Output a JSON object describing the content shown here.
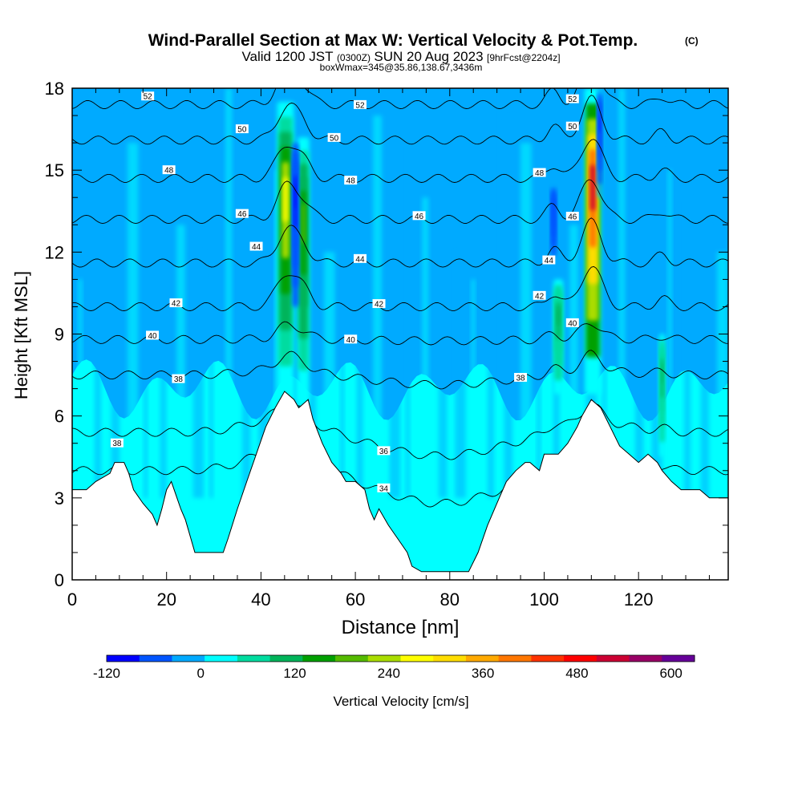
{
  "chart_data": {
    "type": "heatmap",
    "title": "Wind-Parallel Section at Max W: Vertical Velocity & Pot.Temp.",
    "title_mark": "(C)",
    "subtitle_main_a": "Valid 1200 JST",
    "subtitle_small_a": "(0300Z)",
    "subtitle_main_b": "SUN 20 Aug 2023",
    "subtitle_small_b": "[9hrFcst@2204z]",
    "subtitle2": "boxWmax=345@35.86,138.67,3436m",
    "xlabel": "Distance [nm]",
    "ylabel": "Height [Kft MSL]",
    "xlim": [
      0,
      139
    ],
    "ylim": [
      0,
      18
    ],
    "xticks": [
      0,
      20,
      40,
      60,
      80,
      100,
      120
    ],
    "yticks": [
      0,
      3,
      6,
      9,
      12,
      15,
      18
    ],
    "colorbar": {
      "label": "Vertical Velocity [cm/s]",
      "range": [
        -120,
        630
      ],
      "tick_values": [
        -120,
        0,
        120,
        240,
        360,
        480,
        600
      ],
      "tick_labels": [
        "-120",
        "0",
        "120",
        "240",
        "360",
        "480",
        "600"
      ],
      "colors": [
        "#0000ff",
        "#0055ff",
        "#00aaff",
        "#00ffff",
        "#00dca0",
        "#00b45a",
        "#00a000",
        "#55bb00",
        "#aadd00",
        "#ffff00",
        "#ffdd00",
        "#ffaa00",
        "#ff7700",
        "#ff3300",
        "#ff0000",
        "#cc0033",
        "#990066",
        "#660099"
      ]
    },
    "terrain_kft": [
      [
        0,
        3.3
      ],
      [
        3,
        3.3
      ],
      [
        5,
        3.6
      ],
      [
        8,
        3.9
      ],
      [
        9,
        4.3
      ],
      [
        11,
        4.3
      ],
      [
        12,
        3.9
      ],
      [
        13,
        3.3
      ],
      [
        15,
        2.8
      ],
      [
        17,
        2.4
      ],
      [
        18,
        2.0
      ],
      [
        19,
        2.6
      ],
      [
        20,
        3.3
      ],
      [
        21,
        3.6
      ],
      [
        22,
        3.1
      ],
      [
        23,
        2.6
      ],
      [
        24,
        2.2
      ],
      [
        26,
        1.0
      ],
      [
        28,
        1.0
      ],
      [
        32,
        1.0
      ],
      [
        33,
        1.5
      ],
      [
        35,
        2.6
      ],
      [
        37,
        3.6
      ],
      [
        39,
        4.6
      ],
      [
        41,
        5.6
      ],
      [
        43,
        6.3
      ],
      [
        45,
        6.9
      ],
      [
        47,
        6.6
      ],
      [
        48,
        6.3
      ],
      [
        50,
        6.6
      ],
      [
        51,
        5.9
      ],
      [
        53,
        5.0
      ],
      [
        55,
        4.3
      ],
      [
        57,
        3.9
      ],
      [
        58,
        3.6
      ],
      [
        60,
        3.6
      ],
      [
        62,
        3.3
      ],
      [
        63,
        2.6
      ],
      [
        64,
        2.2
      ],
      [
        65,
        2.6
      ],
      [
        67,
        2.0
      ],
      [
        69,
        1.5
      ],
      [
        71,
        1.0
      ],
      [
        72,
        0.5
      ],
      [
        74,
        0.3
      ],
      [
        84,
        0.3
      ],
      [
        86,
        1.0
      ],
      [
        88,
        2.0
      ],
      [
        90,
        2.8
      ],
      [
        92,
        3.6
      ],
      [
        94,
        4.0
      ],
      [
        96,
        4.3
      ],
      [
        97,
        4.3
      ],
      [
        99,
        4.0
      ],
      [
        100,
        4.6
      ],
      [
        103,
        4.6
      ],
      [
        105,
        5.0
      ],
      [
        107,
        5.6
      ],
      [
        108,
        6.0
      ],
      [
        110,
        6.6
      ],
      [
        112,
        6.3
      ],
      [
        114,
        5.6
      ],
      [
        116,
        4.9
      ],
      [
        118,
        4.6
      ],
      [
        120,
        4.3
      ],
      [
        122,
        4.6
      ],
      [
        124,
        4.3
      ],
      [
        125,
        4.0
      ],
      [
        127,
        3.6
      ],
      [
        129,
        3.3
      ],
      [
        133,
        3.3
      ],
      [
        135,
        3.0
      ],
      [
        139,
        3.0
      ]
    ],
    "updraft_columns": [
      {
        "x_center": 45.2,
        "width_nm": 3.5,
        "z_base": 6.5,
        "z_top": 17.5,
        "w_max": 300
      },
      {
        "x_center": 49.0,
        "width_nm": 2.5,
        "z_base": 6.5,
        "z_top": 16.2,
        "w_max": 200
      },
      {
        "x_center": 103.0,
        "width_nm": 2.0,
        "z_base": 6.8,
        "z_top": 11.0,
        "w_max": 130
      },
      {
        "x_center": 110.3,
        "width_nm": 3.5,
        "z_base": 6.8,
        "z_top": 18.0,
        "w_max": 600
      },
      {
        "x_center": 125.0,
        "width_nm": 1.2,
        "z_base": 4.5,
        "z_top": 9.0,
        "w_max": 120
      }
    ],
    "downdraft_columns": [
      {
        "x_center": 47.3,
        "width_nm": 1.2,
        "z_base": 10.0,
        "z_top": 16.0,
        "w_min": -100
      },
      {
        "x_center": 102.0,
        "width_nm": 1.2,
        "z_base": 11.5,
        "z_top": 14.5,
        "w_min": -80
      },
      {
        "x_center": 111.8,
        "width_nm": 1.0,
        "z_base": 14.0,
        "z_top": 18.0,
        "w_min": -90
      }
    ],
    "theta_contours": [
      {
        "value": 34,
        "base_kft": 4.0,
        "label": "34",
        "label_x": 66.0
      },
      {
        "value": 36,
        "base_kft": 5.4,
        "label": "36",
        "label_x": 66.0
      },
      {
        "value": 38,
        "base_kft": 7.5,
        "label": "38",
        "label_x": 22.5
      },
      {
        "value": 40,
        "base_kft": 8.8,
        "label": "40",
        "label_x": 17.0
      },
      {
        "value": 42,
        "base_kft": 10.0,
        "label": "42",
        "label_x": 22.0
      },
      {
        "value": 44,
        "base_kft": 11.6,
        "label": "44",
        "label_x": 61.0
      },
      {
        "value": 46,
        "base_kft": 13.2,
        "label": "46",
        "label_x": 73.5
      },
      {
        "value": 48,
        "base_kft": 14.7,
        "label": "48",
        "label_x": 59.0
      },
      {
        "value": 50,
        "base_kft": 16.1,
        "label": "50",
        "label_x": 55.5
      },
      {
        "value": 52,
        "base_kft": 17.4,
        "label": "52",
        "label_x": 61.0
      }
    ],
    "extra_contour_labels": [
      {
        "label": "38",
        "x": 9.5,
        "y": 5.0
      },
      {
        "label": "38",
        "x": 95.0,
        "y": 7.4
      },
      {
        "label": "40",
        "x": 59.0,
        "y": 8.8
      },
      {
        "label": "40",
        "x": 106.0,
        "y": 9.4
      },
      {
        "label": "42",
        "x": 65.0,
        "y": 10.1
      },
      {
        "label": "42",
        "x": 99.0,
        "y": 10.4
      },
      {
        "label": "44",
        "x": 39.0,
        "y": 12.2
      },
      {
        "label": "44",
        "x": 101.0,
        "y": 11.7
      },
      {
        "label": "46",
        "x": 36.0,
        "y": 13.4
      },
      {
        "label": "46",
        "x": 106.0,
        "y": 13.3
      },
      {
        "label": "48",
        "x": 20.5,
        "y": 15.0
      },
      {
        "label": "48",
        "x": 99.0,
        "y": 14.9
      },
      {
        "label": "50",
        "x": 36.0,
        "y": 16.5
      },
      {
        "label": "50",
        "x": 106.0,
        "y": 16.6
      },
      {
        "label": "52",
        "x": 16.0,
        "y": 17.7
      },
      {
        "label": "52",
        "x": 106.0,
        "y": 17.6
      }
    ]
  }
}
